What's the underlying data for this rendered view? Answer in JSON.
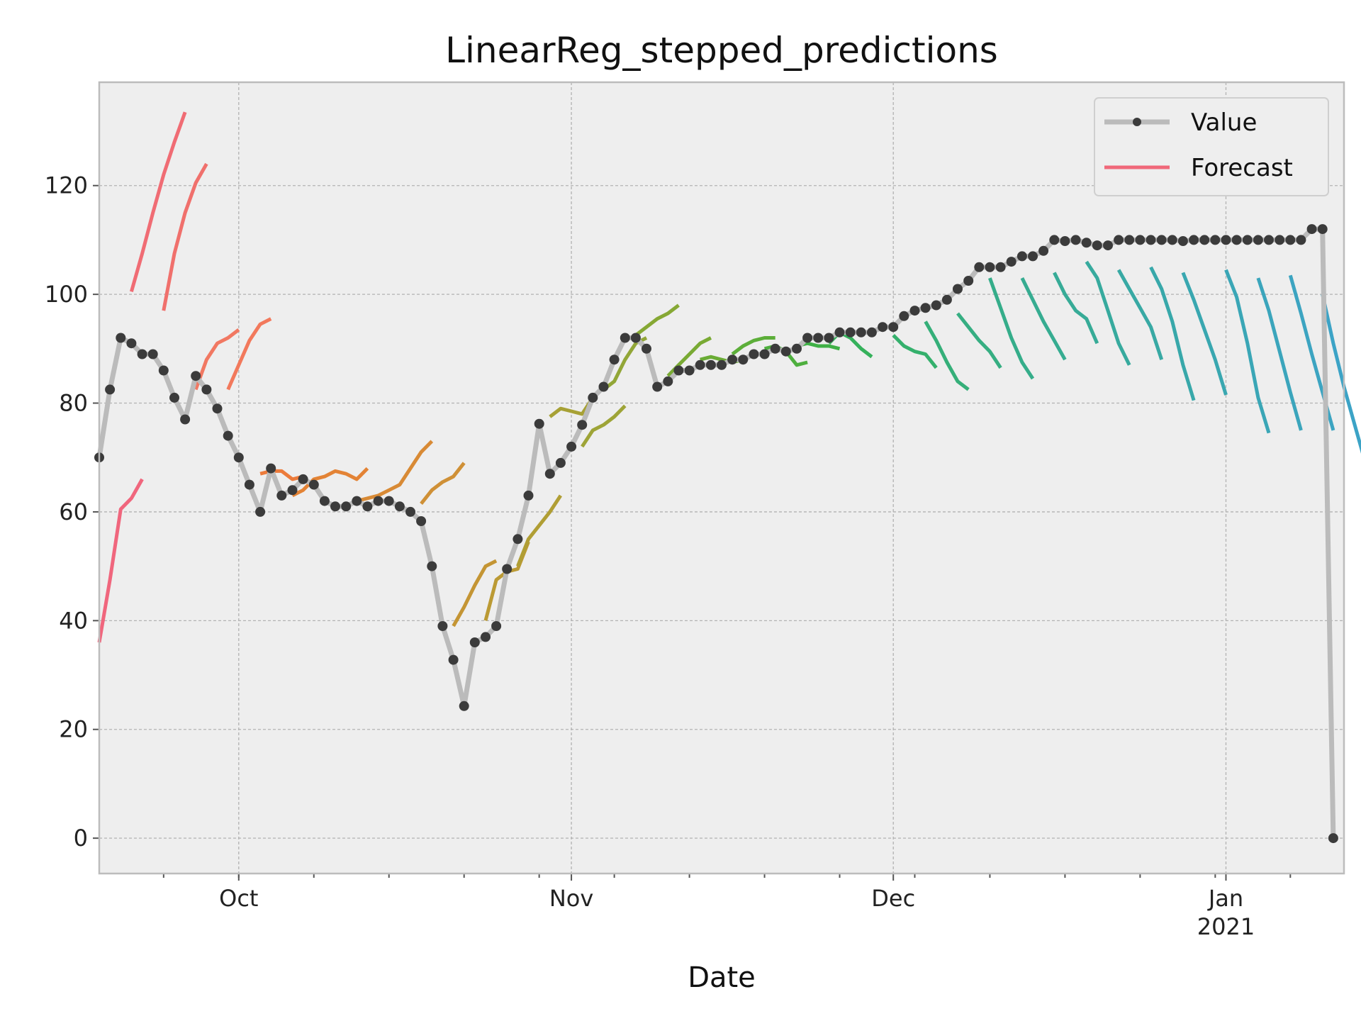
{
  "chart_data": {
    "type": "line",
    "title": "LinearReg_stepped_predictions",
    "xlabel": "Date",
    "ylabel": "",
    "x_range": [
      "2020-09-18",
      "2021-01-12"
    ],
    "ylim": [
      -6.5,
      139
    ],
    "y_ticks": [
      0,
      20,
      40,
      60,
      80,
      100,
      120
    ],
    "x_ticks": [
      {
        "date": "2020-10-01",
        "label": "Oct",
        "sublabel": ""
      },
      {
        "date": "2020-11-01",
        "label": "Nov",
        "sublabel": ""
      },
      {
        "date": "2020-12-01",
        "label": "Dec",
        "sublabel": ""
      },
      {
        "date": "2021-01-01",
        "label": "Jan",
        "sublabel": "2021"
      }
    ],
    "grid": true,
    "legend_position": "top-right",
    "legend": [
      {
        "label": "Value",
        "color": "#bbbbbb",
        "marker_color": "#3b3b3b",
        "style": "line-marker"
      },
      {
        "label": "Forecast",
        "color": "#f0687a",
        "style": "line"
      }
    ],
    "value_series": {
      "name": "Value",
      "color": "#bbbbbb",
      "marker_color": "#3b3b3b",
      "start": "2020-09-18",
      "values": [
        70,
        82.5,
        92,
        91,
        89,
        89,
        86,
        81,
        77,
        85,
        82.5,
        79,
        74,
        70,
        65,
        60,
        68,
        63,
        64,
        66,
        65,
        62,
        61,
        61,
        62,
        61,
        62,
        62,
        61,
        60,
        58.3,
        50,
        39,
        32.8,
        24.3,
        36,
        37,
        39,
        49.5,
        55,
        63,
        76.2,
        67,
        69,
        72,
        76,
        81,
        83,
        88,
        92,
        92,
        90,
        83,
        84,
        86,
        86,
        87,
        87,
        87,
        88,
        88,
        89,
        89,
        90,
        89.5,
        90,
        92,
        92,
        92,
        93,
        93,
        93,
        93,
        94,
        94,
        96,
        97,
        97.5,
        98,
        99,
        101,
        102.5,
        105,
        105,
        105,
        106,
        107,
        107,
        108,
        110,
        109.8,
        110,
        109.5,
        109,
        109,
        110,
        110,
        110,
        110,
        110,
        110,
        109.8,
        110,
        110,
        110,
        110,
        110,
        110,
        110,
        110,
        110,
        110,
        110,
        112,
        112,
        0
      ]
    },
    "forecast_series": [
      {
        "start": "2020-09-18",
        "color": "#f0667d",
        "values": [
          36,
          47.5,
          60.5,
          62.5,
          66
        ]
      },
      {
        "start": "2020-09-21",
        "color": "#f06c74",
        "values": [
          100.5,
          107.5,
          115,
          122,
          128,
          133.5
        ]
      },
      {
        "start": "2020-09-24",
        "color": "#f0706c",
        "values": [
          97,
          107.5,
          115,
          120.5,
          124
        ]
      },
      {
        "start": "2020-09-27",
        "color": "#f17862",
        "values": [
          82.5,
          88,
          91,
          92,
          93.5
        ]
      },
      {
        "start": "2020-09-30",
        "color": "#f2795c",
        "values": [
          82.5,
          87,
          91.5,
          94.5,
          95.5
        ]
      },
      {
        "start": "2020-10-03",
        "color": "#ec7b3b",
        "values": [
          67,
          67.5,
          67.5,
          66,
          66.5
        ]
      },
      {
        "start": "2020-10-06",
        "color": "#e38335",
        "values": [
          63,
          64,
          66,
          66.5,
          67.5,
          67,
          66,
          68
        ]
      },
      {
        "start": "2020-10-12",
        "color": "#d88a35",
        "values": [
          62,
          62.5,
          63,
          64,
          65,
          68,
          71,
          73
        ]
      },
      {
        "start": "2020-10-18",
        "color": "#cf9036",
        "values": [
          61.5,
          64,
          65.5,
          66.5,
          69
        ]
      },
      {
        "start": "2020-10-21",
        "color": "#c49534",
        "values": [
          39,
          42.5,
          46.5,
          50,
          51
        ]
      },
      {
        "start": "2020-10-24",
        "color": "#bb9a34",
        "values": [
          40,
          47.5,
          49,
          49.5,
          54.5
        ]
      },
      {
        "start": "2020-10-27",
        "color": "#b09e34",
        "values": [
          50,
          55,
          57.5,
          60,
          63
        ]
      },
      {
        "start": "2020-10-30",
        "color": "#a7a135",
        "values": [
          77.5,
          79,
          78.5,
          78,
          81
        ]
      },
      {
        "start": "2020-11-02",
        "color": "#9ea437",
        "values": [
          72,
          75,
          76,
          77.5,
          79.5
        ]
      },
      {
        "start": "2020-11-04",
        "color": "#92a637",
        "values": [
          82.5,
          84,
          88,
          91,
          92
        ]
      },
      {
        "start": "2020-11-07",
        "color": "#86a834",
        "values": [
          92.5,
          94,
          95.5,
          96.5,
          98
        ]
      },
      {
        "start": "2020-11-10",
        "color": "#79aa34",
        "values": [
          85,
          87,
          89,
          91,
          92
        ]
      },
      {
        "start": "2020-11-13",
        "color": "#6aac35",
        "values": [
          88,
          88.5,
          88,
          87.5,
          88
        ]
      },
      {
        "start": "2020-11-16",
        "color": "#5cae39",
        "values": [
          89,
          90.5,
          91.5,
          92,
          92
        ]
      },
      {
        "start": "2020-11-19",
        "color": "#4eaf3e",
        "values": [
          90,
          90.5,
          89.5,
          87,
          87.5
        ]
      },
      {
        "start": "2020-11-22",
        "color": "#3fb046",
        "values": [
          90.5,
          91,
          90.5,
          90.5,
          90
        ]
      },
      {
        "start": "2020-11-25",
        "color": "#35b15b",
        "values": [
          91,
          93,
          92,
          90,
          88.5
        ]
      },
      {
        "start": "2020-12-01",
        "color": "#34b06c",
        "values": [
          92.5,
          90.5,
          89.5,
          89,
          86.5
        ]
      },
      {
        "start": "2020-12-04",
        "color": "#35af79",
        "values": [
          95,
          91.5,
          87.5,
          84,
          82.5
        ]
      },
      {
        "start": "2020-12-07",
        "color": "#36ae82",
        "values": [
          96.5,
          94,
          91.5,
          89.5,
          86.5
        ]
      },
      {
        "start": "2020-12-10",
        "color": "#35ad8a",
        "values": [
          103,
          97.5,
          92,
          87.5,
          84.5
        ]
      },
      {
        "start": "2020-12-13",
        "color": "#36ac91",
        "values": [
          103,
          99,
          95,
          91.5,
          88
        ]
      },
      {
        "start": "2020-12-16",
        "color": "#37ab97",
        "values": [
          104,
          100,
          97,
          95.5,
          91
        ]
      },
      {
        "start": "2020-12-19",
        "color": "#37aa9e",
        "values": [
          106,
          103,
          97,
          91,
          87
        ]
      },
      {
        "start": "2020-12-22",
        "color": "#38a9a4",
        "values": [
          104.5,
          101,
          97.5,
          94,
          88
        ]
      },
      {
        "start": "2020-12-25",
        "color": "#38a8aa",
        "values": [
          105,
          101,
          95,
          87,
          80.5
        ]
      },
      {
        "start": "2020-12-28",
        "color": "#39a7b0",
        "values": [
          104,
          99,
          93.5,
          88,
          81.5
        ]
      },
      {
        "start": "2021-01-01",
        "color": "#3aa6b6",
        "values": [
          104.5,
          99.5,
          91,
          81,
          74.5
        ]
      },
      {
        "start": "2021-01-04",
        "color": "#3ba5bc",
        "values": [
          103,
          97,
          89.5,
          82,
          75
        ]
      },
      {
        "start": "2021-01-07",
        "color": "#3ca4c1",
        "values": [
          103.5,
          96.5,
          89,
          82,
          75
        ]
      },
      {
        "start": "2021-01-10",
        "color": "#3ca3c6",
        "values": [
          100,
          91,
          83,
          76,
          69
        ]
      }
    ]
  }
}
